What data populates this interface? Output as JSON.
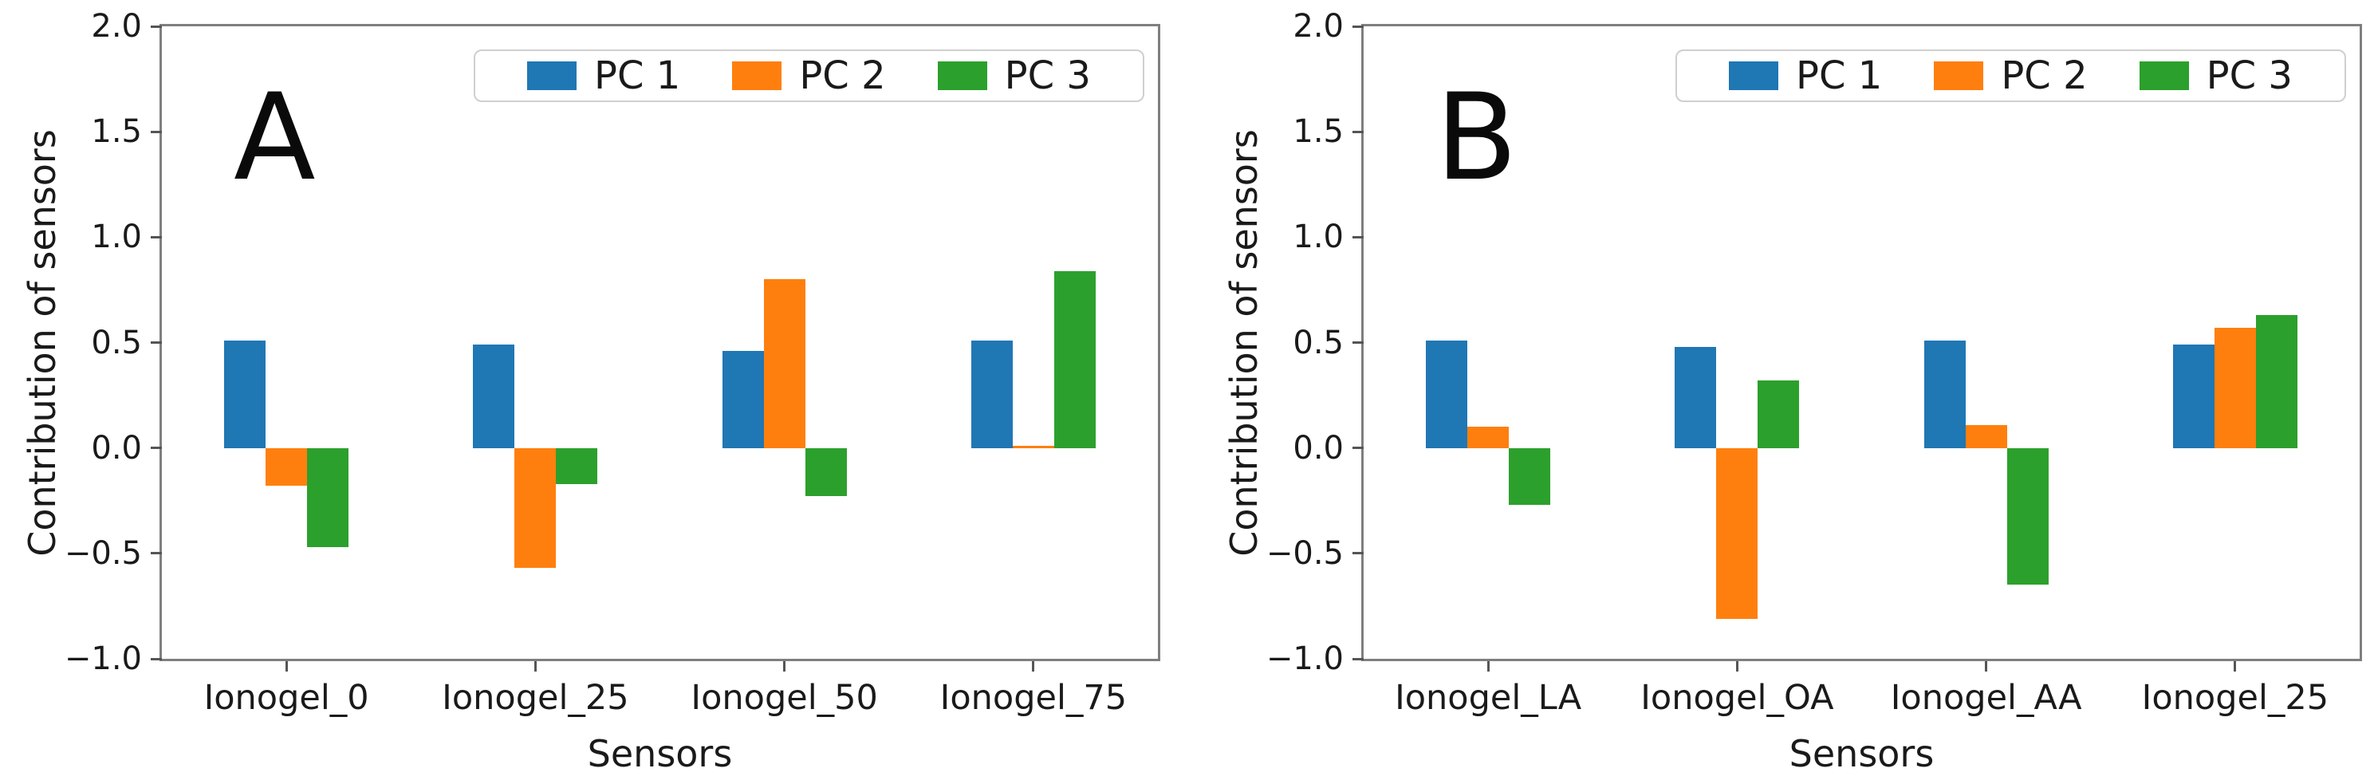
{
  "figure": {
    "background": "#ffffff",
    "panel_letters": [
      "A",
      "B"
    ]
  },
  "chart_data": [
    {
      "type": "bar",
      "panel_label": "A",
      "title": "",
      "xlabel": "Sensors",
      "ylabel": "Contribution of sensors",
      "categories": [
        "Ionogel_0",
        "Ionogel_25",
        "Ionogel_50",
        "Ionogel_75"
      ],
      "series": [
        {
          "name": "PC 1",
          "color": "#1f77b4",
          "values": [
            0.51,
            0.49,
            0.46,
            0.51
          ]
        },
        {
          "name": "PC 2",
          "color": "#ff7f0e",
          "values": [
            -0.18,
            -0.57,
            0.8,
            0.01
          ]
        },
        {
          "name": "PC 3",
          "color": "#2ca02c",
          "values": [
            -0.47,
            -0.17,
            -0.23,
            0.84
          ]
        }
      ],
      "ylim": [
        -1.0,
        2.0
      ],
      "yticks": [
        {
          "value": 2.0,
          "label": "2.0"
        },
        {
          "value": 1.5,
          "label": "1.5"
        },
        {
          "value": 1.0,
          "label": "1.0"
        },
        {
          "value": 0.5,
          "label": "0.5"
        },
        {
          "value": 0.0,
          "label": "0.0"
        },
        {
          "value": -0.5,
          "label": "−0.5"
        },
        {
          "value": -1.0,
          "label": "−1.0"
        }
      ],
      "grid": false,
      "legend_position": "upper right"
    },
    {
      "type": "bar",
      "panel_label": "B",
      "title": "",
      "xlabel": "Sensors",
      "ylabel": "Contribution of sensors",
      "categories": [
        "Ionogel_LA",
        "Ionogel_OA",
        "Ionogel_AA",
        "Ionogel_25"
      ],
      "series": [
        {
          "name": "PC 1",
          "color": "#1f77b4",
          "values": [
            0.51,
            0.48,
            0.51,
            0.49
          ]
        },
        {
          "name": "PC 2",
          "color": "#ff7f0e",
          "values": [
            0.1,
            -0.81,
            0.11,
            0.57
          ]
        },
        {
          "name": "PC 3",
          "color": "#2ca02c",
          "values": [
            -0.27,
            0.32,
            -0.65,
            0.63
          ]
        }
      ],
      "ylim": [
        -1.0,
        2.0
      ],
      "yticks": [
        {
          "value": 2.0,
          "label": "2.0"
        },
        {
          "value": 1.5,
          "label": "1.5"
        },
        {
          "value": 1.0,
          "label": "1.0"
        },
        {
          "value": 0.5,
          "label": "0.5"
        },
        {
          "value": 0.0,
          "label": "0.0"
        },
        {
          "value": -0.5,
          "label": "−0.5"
        },
        {
          "value": -1.0,
          "label": "−1.0"
        }
      ],
      "grid": false,
      "legend_position": "upper right"
    }
  ]
}
